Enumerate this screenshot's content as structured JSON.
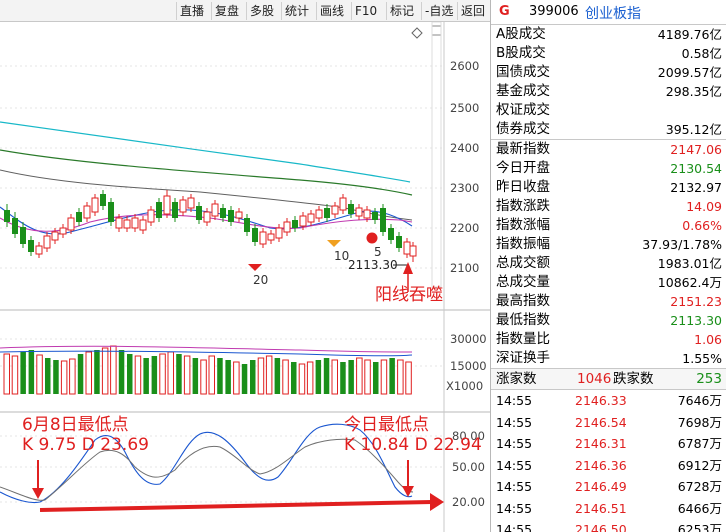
{
  "toolbar": {
    "buttons": [
      "直播",
      "复盘",
      "多股",
      "统计",
      "画线",
      "F10",
      "标记",
      "-自选",
      "返回"
    ]
  },
  "chart": {
    "price_axis": [
      "2600",
      "2500",
      "2400",
      "2300",
      "2200",
      "2100"
    ],
    "volume_axis": [
      "30000",
      "15000"
    ],
    "volume_unit": "X1000",
    "kdj_axis": [
      "80.00",
      "50.00",
      "20.00"
    ],
    "low_label": "2113.30",
    "marker_20": "20",
    "marker_10": "10",
    "marker_5": "5",
    "annotation_engulf": "阳线吞噬",
    "annotation_jun8_title": "6月8日最低点",
    "annotation_jun8_kd": "K 9.75  D 23.69",
    "annotation_today_title": "今日最低点",
    "annotation_today_kd": "K 10.84  D 22.94"
  },
  "panel": {
    "flag": "G",
    "code": "399006",
    "name": "创业板指",
    "turnover": [
      {
        "label": "A股成交",
        "value": "4189.76亿"
      },
      {
        "label": "B股成交",
        "value": "0.58亿"
      },
      {
        "label": "国债成交",
        "value": "2099.57亿"
      },
      {
        "label": "基金成交",
        "value": "298.35亿"
      },
      {
        "label": "权证成交",
        "value": ""
      },
      {
        "label": "债券成交",
        "value": "395.12亿"
      }
    ],
    "index": [
      {
        "label": "最新指数",
        "value": "2147.06",
        "color": "red"
      },
      {
        "label": "今日开盘",
        "value": "2130.54",
        "color": "green"
      },
      {
        "label": "昨日收盘",
        "value": "2132.97",
        "color": "blk"
      },
      {
        "label": "指数涨跌",
        "value": "14.09",
        "color": "red"
      },
      {
        "label": "指数涨幅",
        "value": "0.66%",
        "color": "red"
      },
      {
        "label": "指数振幅",
        "value": "37.93/1.78%",
        "color": "blk"
      },
      {
        "label": "总成交额",
        "value": "1983.01亿",
        "color": "blk"
      },
      {
        "label": "总成交量",
        "value": "10862.4万",
        "color": "blk"
      },
      {
        "label": "最高指数",
        "value": "2151.23",
        "color": "red"
      },
      {
        "label": "最低指数",
        "value": "2113.30",
        "color": "green"
      },
      {
        "label": "指数量比",
        "value": "1.06",
        "color": "red"
      },
      {
        "label": "深证换手",
        "value": "1.55%",
        "color": "blk"
      }
    ],
    "updown": {
      "up_label": "涨家数",
      "up_value": "1046",
      "down_label": "跌家数",
      "down_value": "253"
    },
    "ticks": [
      {
        "time": "14:55",
        "price": "2146.33",
        "vol": "7646万"
      },
      {
        "time": "14:55",
        "price": "2146.54",
        "vol": "7698万"
      },
      {
        "time": "14:55",
        "price": "2146.31",
        "vol": "6787万"
      },
      {
        "time": "14:55",
        "price": "2146.36",
        "vol": "6912万"
      },
      {
        "time": "14:55",
        "price": "2146.49",
        "vol": "6728万"
      },
      {
        "time": "14:55",
        "price": "2146.51",
        "vol": "6466万"
      },
      {
        "time": "14:55",
        "price": "2146.50",
        "vol": "6253万"
      }
    ]
  }
}
